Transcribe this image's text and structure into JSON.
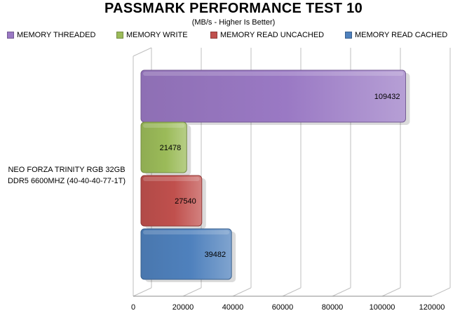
{
  "chart_data": {
    "type": "bar",
    "orientation": "horizontal",
    "title": "PASSMARK PERFORMANCE TEST 10",
    "subtitle": "(MB/s - Higher Is Better)",
    "categories": [
      "NEO FORZA TRINITY RGB 32GB DDR5 6600MHZ (40-40-40-77-1T)"
    ],
    "category_lines": [
      "NEO FORZA TRINITY RGB 32GB",
      "DDR5 6600MHZ (40-40-40-77-1T)"
    ],
    "series": [
      {
        "name": "MEMORY THREADED",
        "values": [
          109432
        ],
        "color": "#9a79c4"
      },
      {
        "name": "MEMORY WRITE",
        "values": [
          21478
        ],
        "color": "#9bbb59"
      },
      {
        "name": "MEMORY READ UNCACHED",
        "values": [
          27540
        ],
        "color": "#c0504d"
      },
      {
        "name": "MEMORY READ CACHED",
        "values": [
          39482
        ],
        "color": "#4f81bd"
      }
    ],
    "xlim": [
      0,
      120000
    ],
    "xticks": [
      "0",
      "20000",
      "40000",
      "60000",
      "80000",
      "100000",
      "120000"
    ],
    "grid": true,
    "legend_position": "top"
  }
}
